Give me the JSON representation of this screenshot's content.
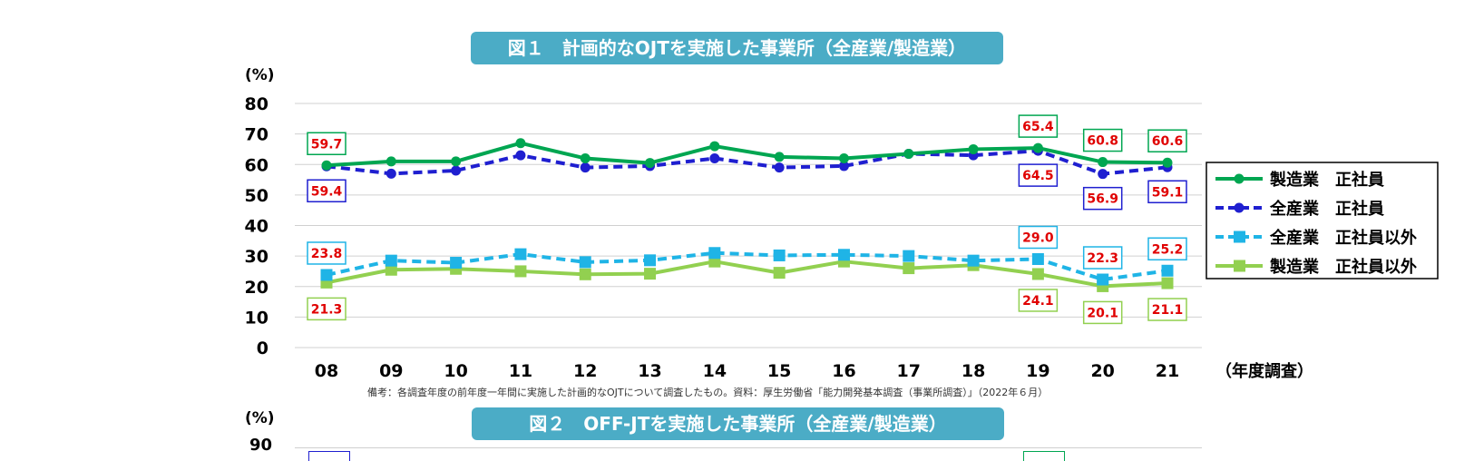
{
  "chart1": {
    "title": "図１　計画的なOJTを実施した事業所（全産業/製造業）",
    "ylabel": "(%)",
    "xlabel": "（年度調査）",
    "note": "備考：各調査年度の前年度一年間に実施した計画的なOJTについて調査したもの。資料：厚生労働省「能力開発基本調査（事業所調査）」（2022年６月）",
    "chart_data": {
      "type": "line",
      "title": "図１　計画的なOJTを実施した事業所（全産業/製造業）",
      "ylabel": "(%)",
      "xlabel": "（年度調査）",
      "ylim": [
        0,
        80
      ],
      "yticks": [
        0,
        10,
        20,
        30,
        40,
        50,
        60,
        70,
        80
      ],
      "categories": [
        "08",
        "09",
        "10",
        "11",
        "12",
        "13",
        "14",
        "15",
        "16",
        "17",
        "18",
        "19",
        "20",
        "21"
      ],
      "series": [
        {
          "name": "製造業　正社員",
          "color": "#00A651",
          "style": "solid",
          "marker": "circle",
          "values": [
            59.7,
            61,
            61,
            67,
            62,
            60.5,
            66,
            62.5,
            62,
            63.5,
            65,
            65.4,
            60.8,
            60.6
          ]
        },
        {
          "name": "全産業　正社員",
          "color": "#1F1FD0",
          "style": "dashed",
          "marker": "circle",
          "values": [
            59.4,
            57,
            58,
            63,
            59,
            59.5,
            62,
            59,
            59.5,
            63.5,
            63,
            64.5,
            56.9,
            59.1
          ]
        },
        {
          "name": "全産業　正社員以外",
          "color": "#1FB4E6",
          "style": "dashed",
          "marker": "square",
          "values": [
            23.8,
            28.5,
            27.8,
            30.6,
            28,
            28.6,
            31,
            30.2,
            30.4,
            30,
            28.5,
            29.0,
            22.3,
            25.2
          ]
        },
        {
          "name": "製造業　正社員以外",
          "color": "#92D050",
          "style": "solid",
          "marker": "square",
          "values": [
            21.3,
            25.5,
            25.8,
            25,
            24,
            24.2,
            28.2,
            24.5,
            28.2,
            26,
            27,
            24.1,
            20.1,
            21.1
          ]
        }
      ],
      "data_labels": [
        {
          "series": 0,
          "index": 0,
          "text": "59.7",
          "pos": "above"
        },
        {
          "series": 1,
          "index": 0,
          "text": "59.4",
          "pos": "below"
        },
        {
          "series": 2,
          "index": 0,
          "text": "23.8",
          "pos": "above"
        },
        {
          "series": 3,
          "index": 0,
          "text": "21.3",
          "pos": "below"
        },
        {
          "series": 0,
          "index": 11,
          "text": "65.4",
          "pos": "above"
        },
        {
          "series": 1,
          "index": 11,
          "text": "64.5",
          "pos": "below"
        },
        {
          "series": 2,
          "index": 11,
          "text": "29.0",
          "pos": "above"
        },
        {
          "series": 3,
          "index": 11,
          "text": "24.1",
          "pos": "below"
        },
        {
          "series": 0,
          "index": 12,
          "text": "60.8",
          "pos": "above"
        },
        {
          "series": 1,
          "index": 12,
          "text": "56.9",
          "pos": "below"
        },
        {
          "series": 2,
          "index": 12,
          "text": "22.3",
          "pos": "above"
        },
        {
          "series": 3,
          "index": 12,
          "text": "20.1",
          "pos": "below"
        },
        {
          "series": 0,
          "index": 13,
          "text": "60.6",
          "pos": "above"
        },
        {
          "series": 1,
          "index": 13,
          "text": "59.1",
          "pos": "below"
        },
        {
          "series": 2,
          "index": 13,
          "text": "25.2",
          "pos": "above"
        },
        {
          "series": 3,
          "index": 13,
          "text": "21.1",
          "pos": "below"
        }
      ],
      "legend_position": "right",
      "grid": true
    }
  },
  "chart2": {
    "title": "図２　OFF-JTを実施した事業所（全産業/製造業）",
    "ylabel": "(%)",
    "first_ytick": "90"
  },
  "colors": {
    "title_badge": "#4BACC6",
    "data_label_text": "#E00000",
    "grid": "#D0D0D0"
  }
}
